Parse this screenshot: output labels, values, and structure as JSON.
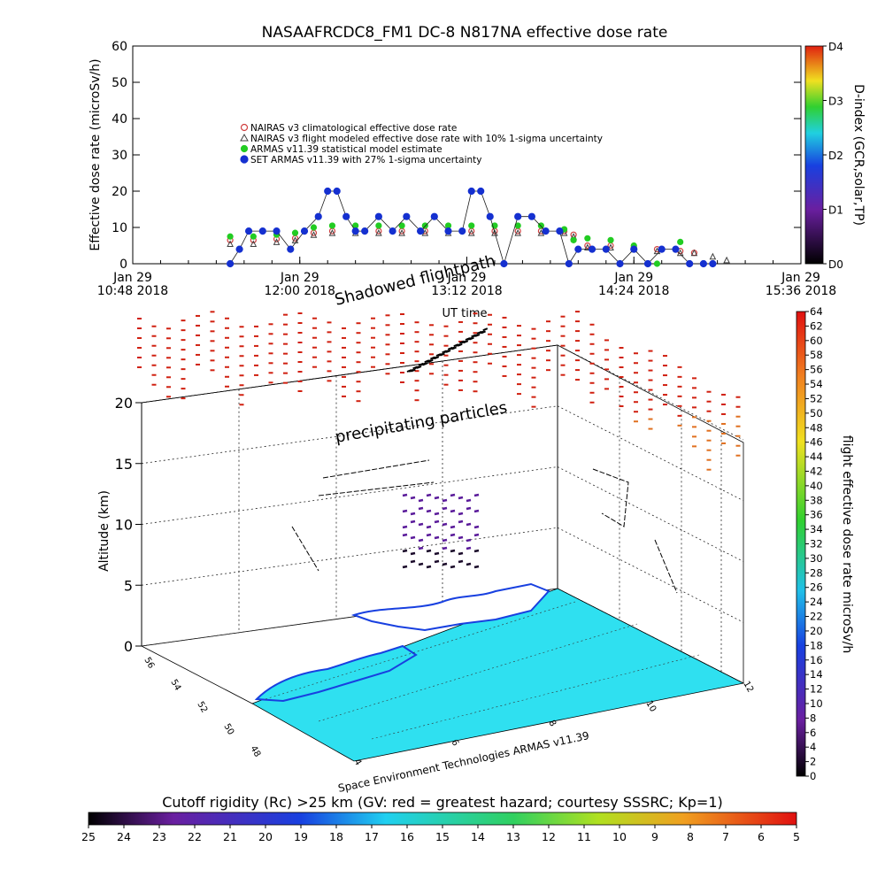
{
  "chart_data": [
    {
      "type": "scatter",
      "title": "NASAAFRCDC8_FM1 DC-8    N817NA effective dose rate",
      "ylabel": "Effective dose rate (microSv/h)",
      "xlabel": "UT time",
      "ylim": [
        0,
        60
      ],
      "y_ticks": [
        "0",
        "10",
        "20",
        "30",
        "40",
        "50",
        "60"
      ],
      "x_ticks": [
        {
          "t": 0,
          "line1": "Jan 29",
          "line2": "10:48 2018"
        },
        {
          "t": 72,
          "line1": "Jan 29",
          "line2": "12:00 2018"
        },
        {
          "t": 144,
          "line1": "Jan 29",
          "line2": "13:12 2018"
        },
        {
          "t": 216,
          "line1": "Jan 29",
          "line2": "14:24 2018"
        },
        {
          "t": 288,
          "line1": "Jan 29",
          "line2": "15:36 2018"
        }
      ],
      "x_range_minutes_from_start": [
        0,
        288
      ],
      "annotation": "Shadowed flightpath",
      "legend": [
        {
          "label": "NAIRAS v3 climatological effective dose rate",
          "color": "#d04040",
          "marker": "circle"
        },
        {
          "label": "NAIRAS v3 flight modeled effective dose rate with 10% 1-sigma uncertainty",
          "color": "#404040",
          "marker": "triangle"
        },
        {
          "label": "ARMAS v11.39 statistical model estimate",
          "color": "#22cc22",
          "marker": "star"
        },
        {
          "label": "SET ARMAS v11.39 with 27% 1-sigma uncertainty",
          "color": "#1530d0",
          "marker": "dot"
        }
      ],
      "series": [
        {
          "name": "NAIRAS v3 climatological effective dose rate",
          "x": [
            42,
            52,
            62,
            70,
            78,
            86,
            96,
            106,
            116,
            126,
            136,
            146,
            156,
            166,
            176,
            186,
            190,
            196,
            206,
            216,
            226,
            236,
            242
          ],
          "y": [
            6.5,
            6.5,
            6.8,
            7.0,
            8.5,
            9.0,
            9.0,
            9.0,
            9.0,
            9.0,
            9.0,
            9.0,
            9.0,
            9.0,
            9.0,
            9.0,
            8.0,
            5.0,
            5.0,
            4.5,
            4.0,
            3.5,
            3.0
          ]
        },
        {
          "name": "NAIRAS v3 flight modeled effective dose rate with 10% 1-sigma uncertainty",
          "x": [
            42,
            52,
            62,
            70,
            78,
            86,
            96,
            106,
            116,
            126,
            136,
            146,
            156,
            166,
            176,
            186,
            190,
            196,
            206,
            216,
            226,
            236,
            242,
            250,
            256
          ],
          "y": [
            5.5,
            5.5,
            6.0,
            6.5,
            8.0,
            8.5,
            8.5,
            8.5,
            8.5,
            8.5,
            8.5,
            8.5,
            8.5,
            8.5,
            8.5,
            8.5,
            7.5,
            4.5,
            4.5,
            4.0,
            3.5,
            3.0,
            3.0,
            2.0,
            1.0
          ]
        },
        {
          "name": "ARMAS v11.39 statistical model estimate",
          "x": [
            42,
            52,
            62,
            70,
            78,
            86,
            96,
            106,
            116,
            126,
            136,
            146,
            156,
            166,
            176,
            186,
            190,
            196,
            206,
            216,
            226,
            236
          ],
          "y": [
            7.5,
            7.5,
            8.0,
            8.5,
            10.0,
            10.5,
            10.5,
            10.5,
            10.5,
            10.5,
            10.5,
            10.5,
            10.5,
            10.5,
            10.5,
            9.5,
            6.5,
            7.0,
            6.5,
            5.0,
            0.0,
            6.0
          ]
        },
        {
          "name": "SET ARMAS v11.39 with 27% 1-sigma uncertainty",
          "x": [
            42,
            46,
            50,
            56,
            62,
            68,
            74,
            80,
            84,
            88,
            92,
            96,
            100,
            106,
            112,
            118,
            124,
            130,
            136,
            142,
            146,
            150,
            154,
            160,
            166,
            172,
            178,
            184,
            188,
            192,
            198,
            204,
            210,
            216,
            222,
            228,
            234,
            240,
            246,
            250
          ],
          "y": [
            0,
            4,
            9,
            9,
            9,
            4,
            9,
            13,
            20,
            20,
            13,
            9,
            9,
            13,
            9,
            13,
            9,
            13,
            9,
            9,
            20,
            20,
            13,
            0,
            13,
            13,
            9,
            9,
            0,
            4,
            4,
            4,
            0,
            4,
            0,
            4,
            4,
            0,
            0,
            0
          ]
        }
      ],
      "right_axis": {
        "label": "D-index (GCR,solar,TP)",
        "ticks": [
          "D0",
          "D1",
          "D2",
          "D3",
          "D4"
        ]
      }
    },
    {
      "type": "3d-scatter",
      "zlabel": "Altitude (km)",
      "z_ticks": [
        "0",
        "5",
        "10",
        "15",
        "20"
      ],
      "annotation": "precipitating particles",
      "credit": "Space Environment Technologies ARMAS v11.39",
      "x_ticks": [
        "4",
        "6",
        "8",
        "10",
        "12"
      ],
      "y_ticks": [
        "48",
        "50",
        "52",
        "54",
        "56"
      ],
      "colorbar_right": {
        "label": "flight effective dose rate microSv/h",
        "ticks": [
          "0",
          "2",
          "4",
          "6",
          "8",
          "10",
          "12",
          "14",
          "16",
          "18",
          "20",
          "22",
          "24",
          "26",
          "28",
          "30",
          "32",
          "34",
          "36",
          "38",
          "40",
          "42",
          "44",
          "46",
          "48",
          "50",
          "52",
          "54",
          "56",
          "58",
          "60",
          "62",
          "64"
        ]
      },
      "colorbar_bottom": {
        "label": "Cutoff rigidity (Rc) >25 km (GV: red = greatest hazard; courtesy SSSRC; Kp=1)",
        "ticks": [
          "25",
          "24",
          "23",
          "22",
          "21",
          "20",
          "19",
          "18",
          "17",
          "16",
          "15",
          "14",
          "13",
          "12",
          "11",
          "10",
          "9",
          "8",
          "7",
          "6",
          "5"
        ]
      }
    }
  ]
}
